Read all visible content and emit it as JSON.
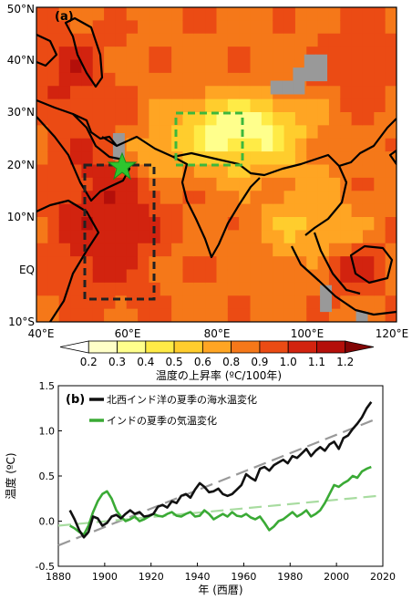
{
  "chart_data": [
    {
      "type": "heatmap",
      "panel_label": "(a)",
      "lat_ticks": [
        "50°N",
        "40°N",
        "30°N",
        "20°N",
        "10°N",
        "EQ",
        "10°S"
      ],
      "lon_ticks": [
        "40°E",
        "60°E",
        "80°E",
        "100°E",
        "120°E"
      ],
      "lon_range": [
        40,
        120
      ],
      "lat_range": [
        -10,
        50
      ],
      "colorbar": {
        "title": "温度の上昇率 (ºC/100年)",
        "tick_labels": [
          "0.2",
          "0.3",
          "0.4",
          "0.5",
          "0.6",
          "0.8",
          "0.9",
          "1.0",
          "1.1",
          "1.2"
        ],
        "colors": [
          "#ffffff",
          "#ffffc8",
          "#ffff8c",
          "#ffeb46",
          "#ffcd2d",
          "#ffa523",
          "#f57819",
          "#eb4b14",
          "#d2230f",
          "#b40f0a",
          "#820505"
        ]
      },
      "no_data_color": "#999999",
      "marker": {
        "label": "star",
        "lon": 58,
        "lat": 20,
        "color": "#2ec52e"
      },
      "boxes": [
        {
          "lon": [
            50,
            65
          ],
          "lat": [
            0,
            20
          ],
          "color": "#222222"
        },
        {
          "lon": [
            70,
            85
          ],
          "lat": [
            20,
            30
          ],
          "color": "#3cb83c"
        }
      ],
      "grid": false
    },
    {
      "type": "line",
      "panel_label": "(b)",
      "ylabel": "温度 (ºC)",
      "xlabel": "年 (西暦)",
      "xlim": [
        1880,
        2020
      ],
      "ylim": [
        -0.5,
        1.5
      ],
      "x_ticks": [
        "1880",
        "1900",
        "1920",
        "1940",
        "1960",
        "1980",
        "2000",
        "2020"
      ],
      "y_ticks": [
        "-0.5",
        "0.0",
        "0.5",
        "1.0",
        "1.5"
      ],
      "legend_position": "top-left",
      "series": [
        {
          "name": "北西インド洋の夏季の海水温変化",
          "color": "#111111",
          "x": [
            1885,
            1887,
            1889,
            1891,
            1893,
            1895,
            1897,
            1899,
            1901,
            1903,
            1905,
            1907,
            1909,
            1911,
            1913,
            1915,
            1917,
            1919,
            1921,
            1923,
            1925,
            1927,
            1929,
            1931,
            1933,
            1935,
            1937,
            1939,
            1941,
            1943,
            1945,
            1947,
            1949,
            1951,
            1953,
            1955,
            1957,
            1959,
            1961,
            1963,
            1965,
            1967,
            1969,
            1971,
            1973,
            1975,
            1977,
            1979,
            1981,
            1983,
            1985,
            1987,
            1989,
            1991,
            1993,
            1995,
            1997,
            1999,
            2001,
            2003,
            2005,
            2007,
            2009,
            2011,
            2013,
            2015
          ],
          "y": [
            0.12,
            0.02,
            -0.1,
            -0.18,
            -0.12,
            0.05,
            0.03,
            -0.05,
            -0.02,
            0.05,
            0.07,
            0.03,
            0.08,
            0.12,
            0.08,
            0.1,
            0.05,
            0.06,
            0.08,
            0.16,
            0.18,
            0.15,
            0.22,
            0.2,
            0.28,
            0.3,
            0.26,
            0.35,
            0.42,
            0.38,
            0.32,
            0.33,
            0.36,
            0.3,
            0.28,
            0.3,
            0.35,
            0.4,
            0.52,
            0.48,
            0.45,
            0.58,
            0.6,
            0.56,
            0.62,
            0.65,
            0.68,
            0.64,
            0.72,
            0.7,
            0.75,
            0.8,
            0.72,
            0.78,
            0.82,
            0.78,
            0.85,
            0.88,
            0.8,
            0.92,
            0.95,
            1.02,
            1.08,
            1.15,
            1.25,
            1.32
          ]
        },
        {
          "name": "インドの夏季の気温変化",
          "color": "#3aaa35",
          "x": [
            1885,
            1887,
            1889,
            1891,
            1893,
            1895,
            1897,
            1899,
            1901,
            1903,
            1905,
            1907,
            1909,
            1911,
            1913,
            1915,
            1917,
            1919,
            1921,
            1923,
            1925,
            1927,
            1929,
            1931,
            1933,
            1935,
            1937,
            1939,
            1941,
            1943,
            1945,
            1947,
            1949,
            1951,
            1953,
            1955,
            1957,
            1959,
            1961,
            1963,
            1965,
            1967,
            1969,
            1971,
            1973,
            1975,
            1977,
            1979,
            1981,
            1983,
            1985,
            1987,
            1989,
            1991,
            1993,
            1995,
            1997,
            1999,
            2001,
            2003,
            2005,
            2007,
            2009,
            2011,
            2013,
            2015
          ],
          "y": [
            -0.05,
            -0.08,
            -0.12,
            -0.15,
            -0.05,
            0.1,
            0.22,
            0.3,
            0.33,
            0.25,
            0.12,
            0.05,
            0.0,
            0.02,
            0.05,
            0.0,
            0.02,
            0.05,
            0.08,
            0.06,
            0.05,
            0.08,
            0.1,
            0.06,
            0.05,
            0.08,
            0.1,
            0.05,
            0.06,
            0.12,
            0.08,
            0.02,
            0.05,
            0.08,
            0.05,
            0.1,
            0.06,
            0.05,
            0.08,
            0.04,
            0.02,
            0.05,
            -0.02,
            -0.1,
            -0.06,
            0.0,
            0.02,
            0.06,
            0.1,
            0.05,
            0.08,
            0.12,
            0.05,
            0.08,
            0.12,
            0.2,
            0.3,
            0.4,
            0.38,
            0.42,
            0.45,
            0.5,
            0.48,
            0.55,
            0.58,
            0.6
          ]
        },
        {
          "name": "",
          "color": "#999999",
          "style": "dashed",
          "x": [
            1880,
            2018
          ],
          "y": [
            -0.27,
            1.14
          ]
        },
        {
          "name": "",
          "color": "#a8dca0",
          "style": "dashed",
          "x": [
            1880,
            2018
          ],
          "y": [
            -0.05,
            0.28
          ]
        }
      ]
    }
  ]
}
